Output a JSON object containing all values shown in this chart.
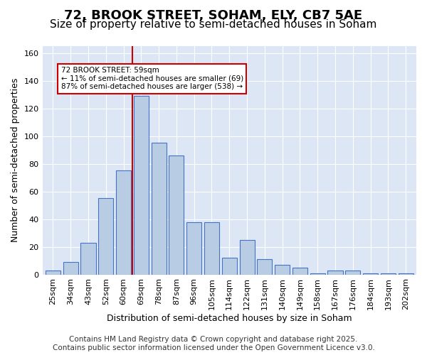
{
  "title": "72, BROOK STREET, SOHAM, ELY, CB7 5AE",
  "subtitle": "Size of property relative to semi-detached houses in Soham",
  "xlabel": "Distribution of semi-detached houses by size in Soham",
  "ylabel": "Number of semi-detached properties",
  "categories": [
    "25sqm",
    "34sqm",
    "43sqm",
    "52sqm",
    "60sqm",
    "69sqm",
    "78sqm",
    "87sqm",
    "96sqm",
    "105sqm",
    "114sqm",
    "122sqm",
    "131sqm",
    "140sqm",
    "149sqm",
    "158sqm",
    "167sqm",
    "176sqm",
    "184sqm",
    "193sqm",
    "202sqm"
  ],
  "values": [
    3,
    9,
    23,
    55,
    75,
    129,
    95,
    86,
    38,
    38,
    12,
    25,
    11,
    7,
    5,
    1,
    3,
    3,
    1,
    1,
    1
  ],
  "bar_color": "#b8cce4",
  "bar_edge_color": "#4472c4",
  "vline_x": 4.5,
  "vline_color": "#cc0000",
  "annotation_title": "72 BROOK STREET: 59sqm",
  "annotation_line1": "← 11% of semi-detached houses are smaller (69)",
  "annotation_line2": "87% of semi-detached houses are larger (538) →",
  "annotation_box_color": "#cc0000",
  "ylim": [
    0,
    165
  ],
  "yticks": [
    0,
    20,
    40,
    60,
    80,
    100,
    120,
    140,
    160
  ],
  "bg_color": "#dce6f5",
  "footer_line1": "Contains HM Land Registry data © Crown copyright and database right 2025.",
  "footer_line2": "Contains public sector information licensed under the Open Government Licence v3.0.",
  "title_fontsize": 13,
  "subtitle_fontsize": 11,
  "axis_label_fontsize": 9,
  "tick_fontsize": 8,
  "footer_fontsize": 7.5
}
